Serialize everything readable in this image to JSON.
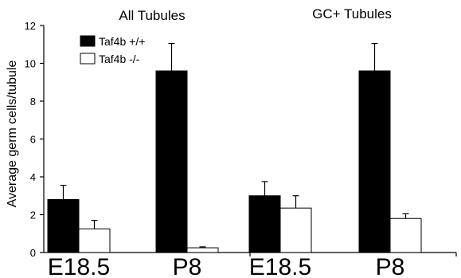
{
  "chart_data": {
    "type": "bar",
    "ylabel": "Average germ cells/tubule",
    "ylim": [
      0,
      12
    ],
    "yticks": [
      0,
      2,
      4,
      6,
      8,
      10,
      12
    ],
    "legend": {
      "placement": "top-left",
      "entries": [
        {
          "label": "Taf4b +/+",
          "color": "#000000"
        },
        {
          "label": "Taf4b -/-",
          "color": "#ffffff"
        }
      ]
    },
    "panels": [
      {
        "title": "All Tubules",
        "categories": [
          "E18.5",
          "P8"
        ],
        "series": [
          {
            "name": "Taf4b +/+",
            "values": [
              2.8,
              9.6
            ],
            "errors": [
              0.75,
              1.45
            ]
          },
          {
            "name": "Taf4b -/-",
            "values": [
              1.25,
              0.25
            ],
            "errors": [
              0.45,
              0.05
            ]
          }
        ]
      },
      {
        "title": "GC+ Tubules",
        "categories": [
          "E18.5",
          "P8"
        ],
        "series": [
          {
            "name": "Taf4b +/+",
            "values": [
              3.0,
              9.6
            ],
            "errors": [
              0.75,
              1.45
            ]
          },
          {
            "name": "Taf4b -/-",
            "values": [
              2.35,
              1.8
            ],
            "errors": [
              0.65,
              0.25
            ]
          }
        ]
      }
    ]
  }
}
